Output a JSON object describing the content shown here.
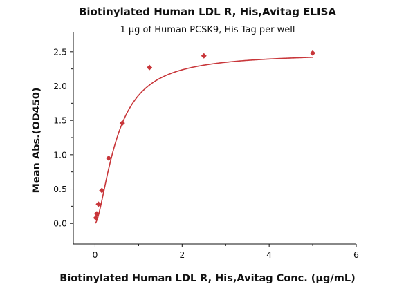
{
  "chart_data": {
    "type": "scatter",
    "title": "Biotinylated Human LDL R, His,Avitag ELISA",
    "subtitle": "1 μg of Human PCSK9, His Tag per well",
    "xlabel": "Biotinylated Human LDL R, His,Avitag Conc. (μg/mL)",
    "ylabel": "Mean Abs.(OD450)",
    "xlim": [
      -0.5,
      6
    ],
    "ylim": [
      -0.3,
      2.78
    ],
    "x_ticks": [
      0,
      2,
      4,
      6
    ],
    "y_ticks": [
      0.0,
      0.5,
      1.0,
      1.5,
      2.0,
      2.5
    ],
    "x_tick_labels": [
      "0",
      "2",
      "4",
      "6"
    ],
    "y_tick_labels": [
      "0.0",
      "0.5",
      "1.0",
      "1.5",
      "2.0",
      "2.5"
    ],
    "grid": false,
    "legend": "none",
    "marker": "diamond",
    "color": "#c8363a",
    "series": [
      {
        "points": [
          {
            "x": 0.0195,
            "y": 0.08
          },
          {
            "x": 0.039,
            "y": 0.14
          },
          {
            "x": 0.078,
            "y": 0.28
          },
          {
            "x": 0.156,
            "y": 0.48
          },
          {
            "x": 0.3125,
            "y": 0.95
          },
          {
            "x": 0.625,
            "y": 1.46
          },
          {
            "x": 1.25,
            "y": 2.27
          },
          {
            "x": 2.5,
            "y": 2.44
          },
          {
            "x": 5.0,
            "y": 2.48
          }
        ],
        "fit_curve": {
          "type": "4PL",
          "bottom": 0.0,
          "top": 2.48,
          "ec50": 0.5,
          "hill": 1.6
        }
      }
    ]
  }
}
